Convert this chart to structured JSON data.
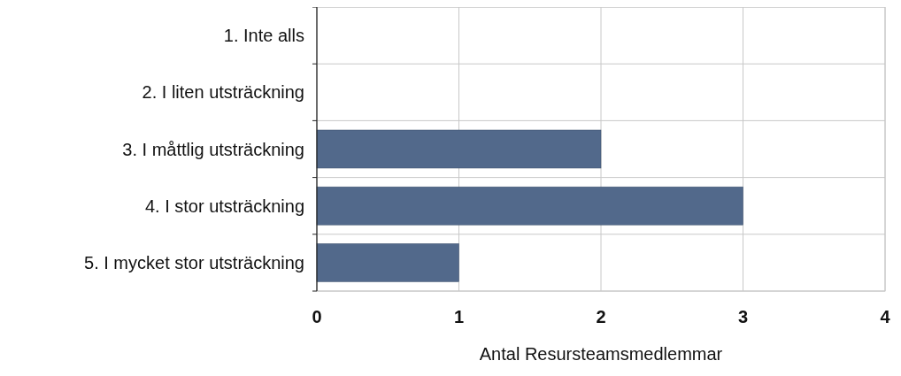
{
  "chart_data": {
    "type": "bar",
    "orientation": "horizontal",
    "xlabel": "Antal Resursteamsmedlemmar",
    "categories": [
      "1. Inte alls",
      "2. I liten utsträckning",
      "3. I måttlig utsträckning",
      "4. I stor utsträckning",
      "5. I mycket stor utsträckning"
    ],
    "values": [
      0,
      0,
      2,
      3,
      1
    ],
    "color": "#52698b",
    "xlim": [
      0,
      4
    ],
    "xticks": [
      0,
      1,
      2,
      3,
      4
    ],
    "grid": true
  }
}
